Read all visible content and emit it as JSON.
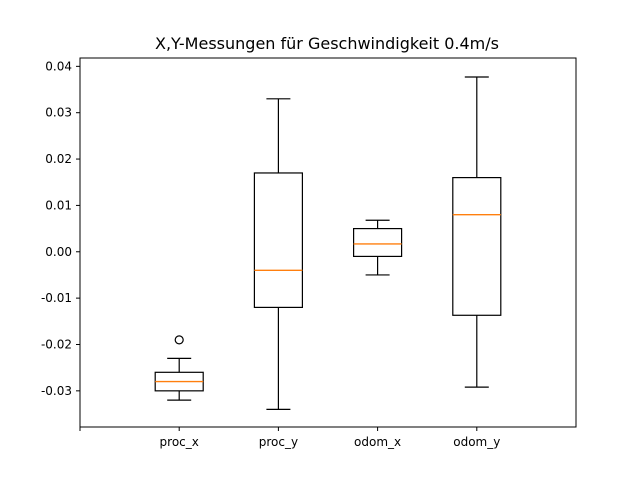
{
  "chart_data": {
    "type": "box",
    "title": "X,Y-Messungen für Geschwindigkeit 0.4m/s",
    "xlabel": "",
    "ylabel": "",
    "ylim": [
      -0.0378,
      0.0418
    ],
    "yticks": [
      -0.03,
      -0.02,
      -0.01,
      0.0,
      0.01,
      0.02,
      0.03,
      0.04
    ],
    "ytick_labels": [
      "-0.03",
      "-0.02",
      "-0.01",
      "0.00",
      "0.01",
      "0.02",
      "0.03",
      "0.04"
    ],
    "x_tick_labels": [
      "",
      "proc_x",
      "proc_y",
      "odom_x",
      "odom_y"
    ],
    "grid": false,
    "series": [
      {
        "category": "proc_x",
        "whisker_low": -0.032,
        "q1": -0.03,
        "median": -0.028,
        "q3": -0.026,
        "whisker_high": -0.023,
        "outliers": [
          -0.019
        ]
      },
      {
        "category": "proc_y",
        "whisker_low": -0.034,
        "q1": -0.012,
        "median": -0.004,
        "q3": 0.017,
        "whisker_high": 0.033,
        "outliers": []
      },
      {
        "category": "odom_x",
        "whisker_low": -0.005,
        "q1": -0.001,
        "median": 0.0017,
        "q3": 0.005,
        "whisker_high": 0.0068,
        "outliers": []
      },
      {
        "category": "odom_y",
        "whisker_low": -0.0292,
        "q1": -0.0137,
        "median": 0.008,
        "q3": 0.016,
        "whisker_high": 0.0377,
        "outliers": []
      }
    ],
    "colors": {
      "box": "#000000",
      "median": "#ff7f0e",
      "axes": "#000000"
    }
  }
}
